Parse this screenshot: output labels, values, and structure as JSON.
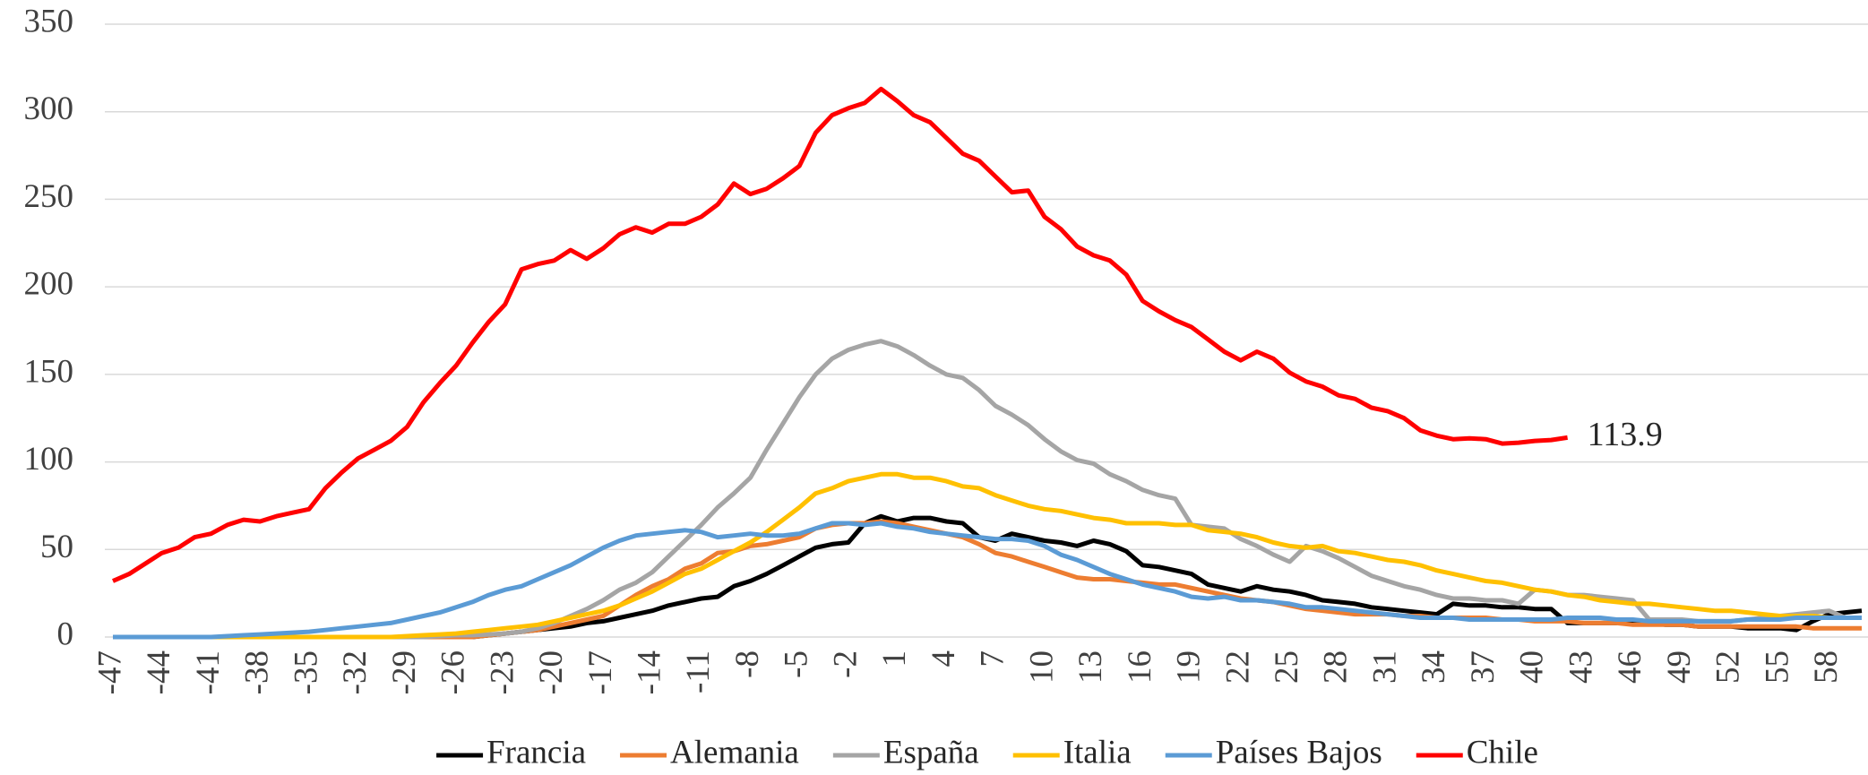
{
  "chart_data": {
    "type": "line",
    "x": [
      -47,
      -46,
      -45,
      -44,
      -43,
      -42,
      -41,
      -40,
      -39,
      -38,
      -37,
      -36,
      -35,
      -34,
      -33,
      -32,
      -31,
      -30,
      -29,
      -28,
      -27,
      -26,
      -25,
      -24,
      -23,
      -22,
      -21,
      -20,
      -19,
      -18,
      -17,
      -16,
      -15,
      -14,
      -13,
      -12,
      -11,
      -10,
      -9,
      -8,
      -7,
      -6,
      -5,
      -4,
      -3,
      -2,
      -1,
      0,
      1,
      2,
      3,
      4,
      5,
      6,
      7,
      8,
      9,
      10,
      11,
      12,
      13,
      14,
      15,
      16,
      17,
      18,
      19,
      20,
      21,
      22,
      23,
      24,
      25,
      26,
      27,
      28,
      29,
      30,
      31,
      32,
      33,
      34,
      35,
      36,
      37,
      38,
      39,
      40,
      41,
      42,
      43,
      44,
      45,
      46,
      47,
      48,
      49,
      50,
      51,
      52,
      53,
      54,
      55,
      56,
      57,
      58,
      59,
      60
    ],
    "xlim": [
      -47,
      60
    ],
    "xticks": [
      -47,
      -44,
      -41,
      -38,
      -35,
      -32,
      -29,
      -26,
      -23,
      -20,
      -17,
      -14,
      -11,
      -8,
      -5,
      -2,
      1,
      4,
      7,
      10,
      13,
      16,
      19,
      22,
      25,
      28,
      31,
      34,
      37,
      40,
      43,
      46,
      49,
      52,
      55,
      58
    ],
    "ylim": [
      0,
      350
    ],
    "yticks": [
      0,
      50,
      100,
      150,
      200,
      250,
      300,
      350
    ],
    "grid": true,
    "legend": "bottom",
    "series": [
      {
        "name": "Francia",
        "color": "#000000",
        "values": [
          0,
          0,
          0,
          0,
          0,
          0,
          0,
          0,
          0,
          0,
          0,
          0,
          0,
          0,
          0,
          0,
          0,
          0,
          0,
          0,
          0,
          0,
          0,
          1,
          2,
          3,
          4,
          5,
          6,
          8,
          9,
          11,
          13,
          15,
          18,
          20,
          22,
          23,
          29,
          32,
          36,
          41,
          46,
          51,
          53,
          54,
          65,
          69,
          66,
          68,
          68,
          66,
          65,
          57,
          55,
          59,
          57,
          55,
          54,
          52,
          55,
          53,
          49,
          41,
          40,
          38,
          36,
          30,
          28,
          26,
          29,
          27,
          26,
          24,
          21,
          20,
          19,
          17,
          16,
          15,
          14,
          13,
          19,
          18,
          18,
          17,
          17,
          16,
          16,
          8,
          8,
          8,
          8,
          8,
          8,
          7,
          7,
          6,
          6,
          6,
          5,
          5,
          5,
          4,
          9,
          13,
          14,
          15
        ]
      },
      {
        "name": "Alemania",
        "color": "#ed7d31",
        "values": [
          0,
          0,
          0,
          0,
          0,
          0,
          0,
          0,
          0,
          0,
          0,
          0,
          0,
          0,
          0,
          0,
          0,
          0,
          0,
          0,
          0,
          0,
          0,
          1,
          2,
          3,
          4,
          6,
          8,
          10,
          12,
          18,
          24,
          29,
          33,
          39,
          42,
          48,
          49,
          52,
          53,
          55,
          57,
          62,
          64,
          65,
          65,
          66,
          65,
          63,
          61,
          59,
          57,
          53,
          48,
          46,
          43,
          40,
          37,
          34,
          33,
          33,
          32,
          31,
          30,
          30,
          28,
          26,
          24,
          22,
          21,
          20,
          18,
          16,
          15,
          14,
          13,
          13,
          13,
          12,
          12,
          11,
          11,
          11,
          11,
          10,
          10,
          9,
          9,
          9,
          8,
          8,
          8,
          7,
          7,
          7,
          7,
          6,
          6,
          6,
          6,
          6,
          6,
          6,
          5,
          5,
          5,
          5
        ]
      },
      {
        "name": "España",
        "color": "#a5a5a5",
        "values": [
          0,
          0,
          0,
          0,
          0,
          0,
          0,
          0,
          0,
          0,
          0,
          0,
          0,
          0,
          0,
          0,
          0,
          0,
          0,
          0,
          0.5,
          1,
          1,
          1.5,
          2,
          3,
          5,
          8,
          12,
          16,
          21,
          27,
          31,
          37,
          46,
          55,
          64,
          74,
          82,
          91,
          107,
          122,
          137,
          150,
          159,
          164,
          167,
          169,
          166,
          161,
          155,
          150,
          148,
          141,
          132,
          127,
          121,
          113,
          106,
          101,
          99,
          93,
          89,
          84,
          81,
          79,
          64,
          63,
          62,
          56,
          52,
          47,
          43,
          52,
          49,
          45,
          40,
          35,
          32,
          29,
          27,
          24,
          22,
          22,
          21,
          21,
          19,
          27,
          26,
          24,
          24,
          23,
          22,
          21,
          10,
          10,
          10,
          9,
          9,
          9,
          10,
          11,
          12,
          13,
          14,
          15,
          11,
          11
        ]
      },
      {
        "name": "Italia",
        "color": "#ffc000",
        "values": [
          0,
          0,
          0,
          0,
          0,
          0,
          0,
          0,
          0,
          0,
          0,
          0,
          0,
          0,
          0,
          0,
          0,
          0,
          0.5,
          1,
          1.5,
          2,
          3,
          4,
          5,
          6,
          7,
          9,
          11,
          13,
          15,
          18,
          22,
          26,
          31,
          36,
          39,
          44,
          49,
          54,
          60,
          67,
          74,
          82,
          85,
          89,
          91,
          93,
          93,
          91,
          91,
          89,
          86,
          85,
          81,
          78,
          75,
          73,
          72,
          70,
          68,
          67,
          65,
          65,
          65,
          64,
          64,
          61,
          60,
          59,
          57,
          54,
          52,
          51,
          52,
          49,
          48,
          46,
          44,
          43,
          41,
          38,
          36,
          34,
          32,
          31,
          29,
          27,
          26,
          24,
          23,
          21,
          20,
          19,
          19,
          18,
          17,
          16,
          15,
          15,
          14,
          13,
          12,
          12,
          12,
          11,
          11,
          11
        ]
      },
      {
        "name": "Países Bajos",
        "color": "#5b9bd5",
        "values": [
          0,
          0,
          0,
          0,
          0,
          0,
          0,
          0.5,
          1,
          1.5,
          2,
          2.5,
          3,
          4,
          5,
          6,
          7,
          8,
          10,
          12,
          14,
          17,
          20,
          24,
          27,
          29,
          33,
          37,
          41,
          46,
          51,
          55,
          58,
          59,
          60,
          61,
          60,
          57,
          58,
          59,
          58,
          58,
          59,
          62,
          65,
          65,
          64,
          65,
          63,
          62,
          60,
          59,
          58,
          57,
          56,
          56,
          55,
          52,
          47,
          44,
          40,
          36,
          33,
          30,
          28,
          26,
          23,
          22,
          23,
          21,
          21,
          20,
          19,
          17,
          17,
          16,
          15,
          14,
          13,
          12,
          11,
          11,
          11,
          10,
          10,
          10,
          10,
          10,
          10,
          11,
          11,
          11,
          10,
          10,
          9,
          9,
          9,
          9,
          9,
          9,
          10,
          10,
          10,
          11,
          11,
          11,
          11,
          11
        ]
      },
      {
        "name": "Chile",
        "color": "#ff0000",
        "values": [
          32,
          36,
          42,
          48,
          51,
          57,
          59,
          64,
          67,
          66,
          69,
          71,
          73,
          85,
          94,
          102,
          107,
          112,
          120,
          134,
          145,
          155,
          168,
          180,
          190,
          210,
          213,
          215,
          221,
          216,
          222,
          230,
          234,
          231,
          236,
          236,
          240,
          247,
          259,
          253,
          256,
          262,
          269,
          288,
          298,
          302,
          305,
          313,
          306,
          298,
          294,
          285,
          276,
          272,
          263,
          254,
          255,
          240,
          233,
          223,
          218,
          215,
          207,
          192,
          186,
          181,
          177,
          170,
          163,
          158,
          163,
          159,
          151,
          146,
          143,
          138,
          136,
          131,
          129,
          125,
          118,
          115,
          113,
          113.5,
          113,
          110.5,
          111,
          112,
          112.5,
          113.9,
          null,
          null,
          null,
          null,
          null,
          null,
          null,
          null,
          null,
          null,
          null,
          null,
          null,
          null,
          null,
          null,
          null,
          null
        ],
        "value_labels": [
          null,
          null,
          null,
          null,
          null,
          null,
          null,
          null,
          null,
          null,
          null,
          null,
          null,
          null,
          null,
          null,
          null,
          null,
          null,
          null,
          null,
          null,
          null,
          null,
          null,
          null,
          null,
          null,
          null,
          null,
          null,
          null,
          null,
          null,
          null,
          null,
          null,
          null,
          null,
          null,
          null,
          null,
          null,
          null,
          null,
          null,
          null,
          null,
          null,
          null,
          null,
          null,
          null,
          null,
          null,
          null,
          null,
          null,
          null,
          null,
          null,
          null,
          null,
          null,
          null,
          null,
          null,
          null,
          null,
          null,
          null,
          null,
          null,
          null,
          null,
          null,
          null,
          null,
          null,
          null,
          null,
          null,
          null,
          null,
          null,
          null,
          null,
          null,
          null,
          "113.9",
          null,
          null,
          null,
          null,
          null,
          null,
          null,
          null,
          null,
          null,
          null,
          null,
          null,
          null,
          null,
          null,
          null,
          null
        ]
      }
    ]
  }
}
